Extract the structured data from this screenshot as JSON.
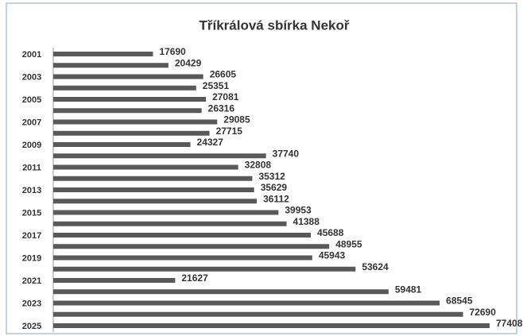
{
  "chart_data": {
    "type": "bar",
    "orientation": "horizontal",
    "title": "Tříkrálová sbírka Nekoř",
    "categories": [
      "2001",
      null,
      "2003",
      null,
      "2005",
      null,
      "2007",
      null,
      "2009",
      null,
      "2011",
      null,
      "2013",
      null,
      "2015",
      null,
      "2017",
      null,
      "2019",
      null,
      "2021",
      null,
      "2023",
      null,
      "2025"
    ],
    "values": [
      17690,
      20429,
      26605,
      25351,
      27081,
      26316,
      29085,
      27715,
      24327,
      37740,
      32808,
      35312,
      35629,
      36112,
      39953,
      41388,
      45688,
      48955,
      45943,
      53624,
      21627,
      59481,
      68545,
      72690,
      77408
    ],
    "color": "#595959"
  }
}
